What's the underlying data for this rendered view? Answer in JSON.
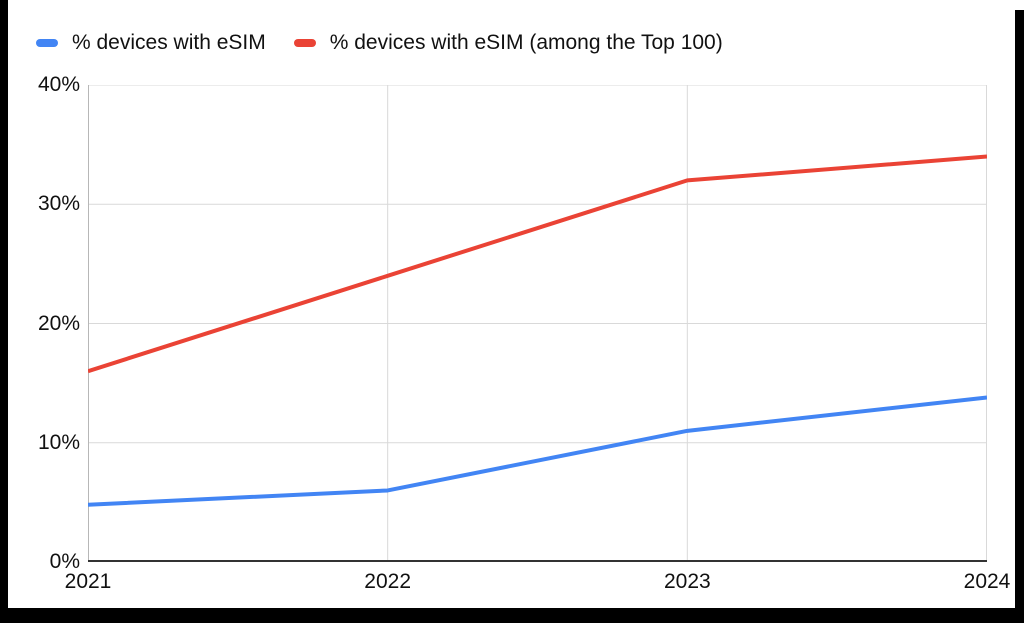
{
  "frame": {
    "border_color": "#000000",
    "background_color": "#ffffff"
  },
  "chart_data": {
    "type": "line",
    "categories": [
      "2021",
      "2022",
      "2023",
      "2024"
    ],
    "series": [
      {
        "name": "% devices with eSIM",
        "color": "#4285f4",
        "values": [
          4.8,
          6,
          11,
          13.8
        ]
      },
      {
        "name": "% devices with eSIM (among the Top 100)",
        "color": "#ea4335",
        "values": [
          16,
          24,
          32,
          34
        ]
      }
    ],
    "ylim": [
      0,
      40
    ],
    "yticks": [
      {
        "value": 0,
        "label": "0%"
      },
      {
        "value": 10,
        "label": "10%"
      },
      {
        "value": 20,
        "label": "20%"
      },
      {
        "value": 30,
        "label": "30%"
      },
      {
        "value": 40,
        "label": "40%"
      }
    ],
    "grid": true,
    "legend_position": "top-left",
    "line_width": 4,
    "grid_color": "#d9d9d9",
    "edge_line_color": "#b7b7b7",
    "axis_color": "#333333",
    "text_color": "#111111"
  }
}
